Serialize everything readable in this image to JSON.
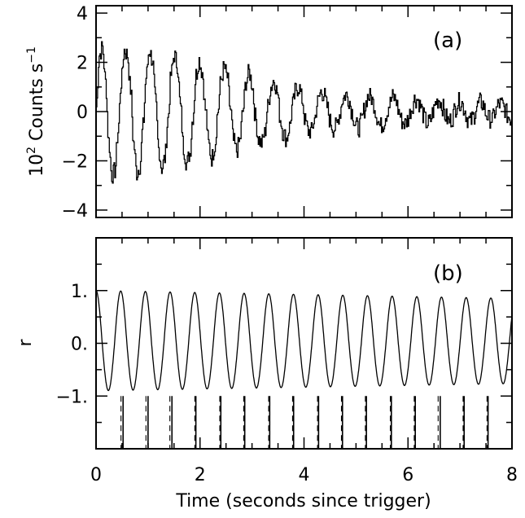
{
  "chart_data": [
    {
      "panel_label": "(a)",
      "type": "line",
      "title": "",
      "xlabel": "",
      "ylabel_prefix": "10",
      "ylabel_exp": "2",
      "ylabel_unit": " Counts s",
      "ylabel_unit_exp": "−1",
      "xlim": [
        0,
        8
      ],
      "ylim": [
        -4.3,
        4.3
      ],
      "yticks": [
        -4,
        -2,
        0,
        2,
        4
      ],
      "ytick_labels": [
        "−4",
        "−2",
        "0",
        "2",
        "4"
      ],
      "xticks": [
        0,
        2,
        4,
        6,
        8
      ],
      "series": [
        {
          "description_values": "damped oscillation, period ≈0.47 s",
          "x": [
            0.0,
            0.06,
            0.12,
            0.18,
            0.24,
            0.3,
            0.36,
            0.42,
            0.48,
            0.54,
            0.6,
            0.66,
            0.72,
            0.78,
            0.84,
            0.9,
            0.96,
            1.02,
            1.08,
            1.14,
            1.2,
            1.26,
            1.32,
            1.38,
            1.44,
            1.5,
            1.56,
            1.62,
            1.68,
            1.74,
            1.8,
            1.86,
            1.92,
            1.98,
            2.04,
            2.1,
            2.16,
            2.22,
            2.28,
            2.34,
            2.4,
            2.46,
            2.52,
            2.58,
            2.64,
            2.7,
            2.76,
            2.82,
            2.88,
            2.94,
            3.0,
            3.06,
            3.12,
            3.18,
            3.24,
            3.3,
            3.36,
            3.42,
            3.48,
            3.54,
            3.6,
            3.66,
            3.72,
            3.78,
            3.84,
            3.9,
            3.96,
            4.02,
            4.08,
            4.14,
            4.2,
            4.26,
            4.32,
            4.38,
            4.44,
            4.5,
            4.56,
            4.62,
            4.68,
            4.74,
            4.8,
            4.86,
            4.92,
            4.98,
            5.04,
            5.1,
            5.16,
            5.22,
            5.28,
            5.34,
            5.4,
            5.46,
            5.52,
            5.58,
            5.64,
            5.7,
            5.76,
            5.82,
            5.88,
            5.94,
            6.0,
            6.06,
            6.12,
            6.18,
            6.24,
            6.3,
            6.36,
            6.42,
            6.48,
            6.54,
            6.6,
            6.66,
            6.72,
            6.78,
            6.84,
            6.9,
            6.96,
            7.02,
            7.08,
            7.14,
            7.2,
            7.26,
            7.32,
            7.38,
            7.44,
            7.5,
            7.56,
            7.62,
            7.68,
            7.74,
            7.8,
            7.86,
            7.92,
            7.98
          ],
          "y": [
            0.2,
            2.3,
            2.6,
            1.2,
            -1.2,
            -2.6,
            -2.4,
            -0.8,
            1.2,
            2.5,
            2.3,
            0.9,
            -1.3,
            -2.5,
            -2.2,
            -0.6,
            1.4,
            2.5,
            2.1,
            0.4,
            -1.5,
            -2.3,
            -1.9,
            -0.3,
            1.5,
            2.3,
            1.9,
            0.2,
            -1.5,
            -2.1,
            -1.7,
            -0.2,
            1.5,
            2.1,
            1.6,
            0.1,
            -1.3,
            -1.9,
            -1.4,
            0.0,
            1.3,
            1.8,
            1.4,
            0.1,
            -1.2,
            -1.6,
            -1.2,
            0.0,
            1.2,
            1.6,
            1.1,
            -0.2,
            -1.1,
            -1.3,
            -0.9,
            0.2,
            1.0,
            1.3,
            0.8,
            -0.3,
            -0.9,
            -1.1,
            -0.6,
            0.3,
            0.9,
            1.0,
            0.5,
            -0.4,
            -0.8,
            -0.8,
            -0.3,
            0.4,
            0.8,
            0.7,
            0.2,
            -0.4,
            -0.7,
            -0.6,
            -0.1,
            0.5,
            0.7,
            0.5,
            0.0,
            -0.5,
            -0.7,
            -0.4,
            0.1,
            0.6,
            0.6,
            0.3,
            -0.2,
            -0.6,
            -0.5,
            -0.1,
            0.3,
            0.6,
            0.5,
            0.0,
            -0.4,
            -0.5,
            -0.3,
            0.1,
            0.5,
            0.5,
            0.2,
            -0.2,
            -0.5,
            -0.4,
            0.0,
            0.4,
            0.5,
            0.2,
            -0.2,
            -0.4,
            -0.3,
            0.1,
            0.4,
            0.4,
            0.1,
            -0.3,
            -0.4,
            -0.2,
            0.2,
            0.4,
            0.3,
            -0.1,
            -0.3,
            -0.3,
            0.0,
            0.3,
            0.3,
            0.1,
            -0.2,
            -0.3
          ]
        }
      ]
    },
    {
      "panel_label": "(b)",
      "type": "line",
      "title": "",
      "xlabel": "Time (seconds since trigger)",
      "ylabel": "r",
      "xlim": [
        0,
        8
      ],
      "ylim": [
        -2.0,
        2.0
      ],
      "yticks": [
        -1,
        0,
        1
      ],
      "ytick_labels": [
        "−1.",
        "0.",
        "1."
      ],
      "xticks": [
        0,
        2,
        4,
        6,
        8
      ],
      "xtick_labels": [
        "0",
        "2",
        "4",
        "6",
        "8"
      ],
      "series": [
        {
          "period_s": 0.4746,
          "amplitude_start": 1.0,
          "amplitude_end": 0.85
        }
      ],
      "markers": {
        "solid_x": [
          0.52,
          1.0,
          1.46,
          1.92,
          2.4,
          2.86,
          3.34,
          3.8,
          4.28,
          4.74,
          5.2,
          5.68,
          6.14,
          6.62,
          7.08,
          7.54
        ],
        "dashed_x": [
          0.48,
          0.96,
          1.42,
          1.9,
          2.38,
          2.84,
          3.32,
          3.78,
          4.26,
          4.72,
          5.18,
          5.66,
          6.12,
          6.58,
          7.06,
          7.52
        ]
      }
    }
  ]
}
